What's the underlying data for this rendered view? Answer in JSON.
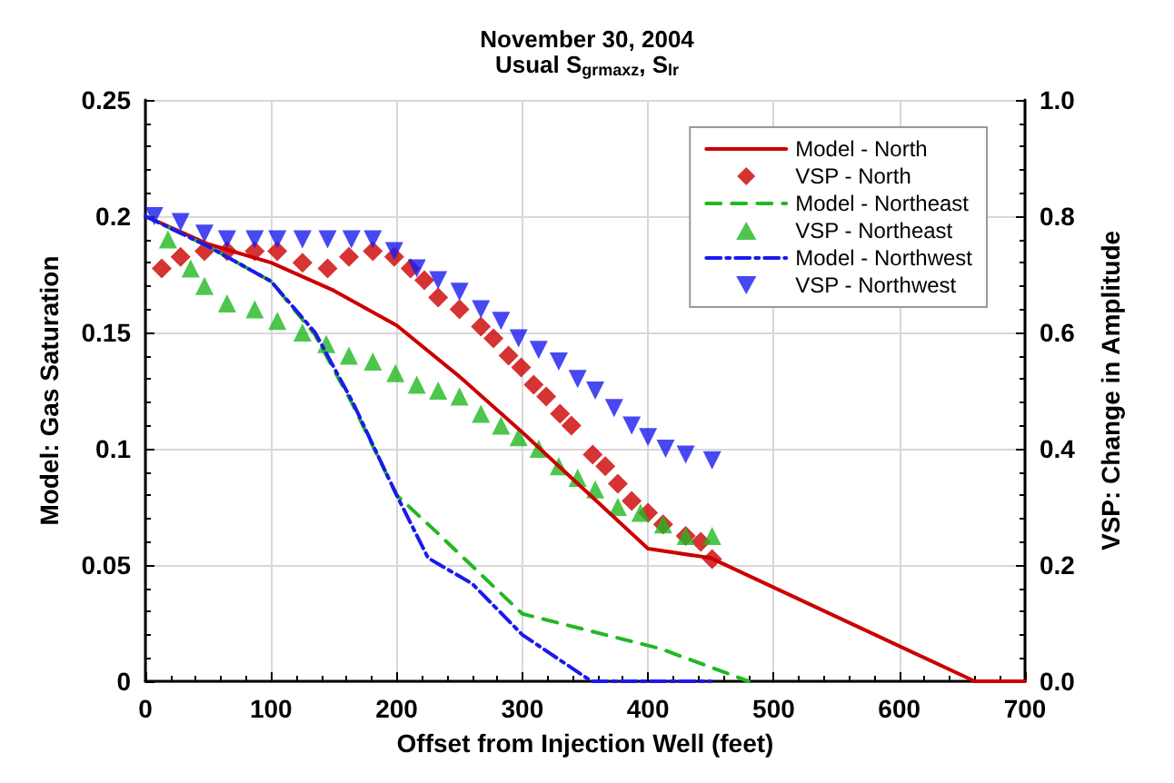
{
  "chart_data": {
    "type": "line",
    "title": "November 30, 2004",
    "subtitle": "Usual S$_{grmaxz}$, S$_{lr}$",
    "xlabel": "Offset from Injection Well (feet)",
    "ylabel": "Model: Gas Saturation",
    "y2label": "VSP: Change in Amplitude",
    "xlim": [
      0,
      700
    ],
    "xticks": [
      0,
      100,
      200,
      300,
      400,
      500,
      600,
      700
    ],
    "ylim": [
      0,
      0.25
    ],
    "yticks": [
      0,
      0.05,
      0.1,
      0.15,
      0.2,
      0.25
    ],
    "y2lim": [
      0,
      1
    ],
    "y2ticks": [
      {
        "value": 0,
        "label": "0.0"
      },
      {
        "value": 0.2,
        "label": "0.2"
      },
      {
        "value": 0.4,
        "label": "0.4"
      },
      {
        "value": 0.6,
        "label": "0.6"
      },
      {
        "value": 0.8,
        "label": "0.8"
      },
      {
        "value": 1,
        "label": "1.0"
      }
    ],
    "grid": true,
    "legend": "top right",
    "series": [
      {
        "name": "Model - North",
        "type": "line",
        "line_style": "solid",
        "marker": "none",
        "color": "#cc0000",
        "x": [
          0,
          50,
          100,
          150,
          200,
          250,
          300,
          350,
          400,
          450,
          660,
          700
        ],
        "values": [
          0.2,
          0.188,
          0.18,
          0.168,
          0.153,
          0.131,
          0.107,
          0.082,
          0.057,
          0.053,
          0,
          0
        ]
      },
      {
        "name": "VSP - North",
        "type": "scatter",
        "marker": "diamond",
        "axis": "y2",
        "color": "#cc0000",
        "x": [
          13,
          28,
          47,
          65,
          87,
          105,
          125,
          145,
          162,
          181,
          198,
          211,
          222,
          233,
          250,
          267,
          277,
          289,
          299,
          309,
          319,
          330,
          339,
          356,
          366,
          376,
          387,
          400,
          412,
          430,
          442,
          451
        ],
        "values": [
          0.71,
          0.73,
          0.74,
          0.74,
          0.74,
          0.74,
          0.72,
          0.71,
          0.73,
          0.74,
          0.73,
          0.71,
          0.69,
          0.66,
          0.64,
          0.61,
          0.59,
          0.56,
          0.54,
          0.51,
          0.49,
          0.46,
          0.44,
          0.39,
          0.37,
          0.34,
          0.31,
          0.29,
          0.27,
          0.25,
          0.24,
          0.21
        ]
      },
      {
        "name": "Model - Northeast",
        "type": "line",
        "line_style": "dashed",
        "marker": "none",
        "color": "#22b822",
        "x": [
          0,
          50,
          100,
          135,
          165,
          200,
          230,
          300,
          410,
          480
        ],
        "values": [
          0.2,
          0.187,
          0.172,
          0.149,
          0.119,
          0.08,
          0.065,
          0.029,
          0.014,
          0
        ]
      },
      {
        "name": "VSP - Northeast",
        "type": "scatter",
        "marker": "triangle",
        "axis": "y2",
        "color": "#22b822",
        "x": [
          18,
          36,
          47,
          65,
          87,
          105,
          125,
          144,
          162,
          181,
          199,
          216,
          233,
          250,
          267,
          283,
          297,
          313,
          329,
          344,
          358,
          376,
          394,
          412,
          430,
          451
        ],
        "values": [
          0.76,
          0.71,
          0.68,
          0.65,
          0.64,
          0.62,
          0.6,
          0.58,
          0.56,
          0.55,
          0.53,
          0.51,
          0.5,
          0.49,
          0.46,
          0.44,
          0.42,
          0.4,
          0.37,
          0.35,
          0.33,
          0.3,
          0.29,
          0.27,
          0.25,
          0.25
        ]
      },
      {
        "name": "Model - Northwest",
        "type": "line",
        "line_style": "dashdot",
        "marker": "none",
        "color": "#1a1aee",
        "x": [
          0,
          50,
          100,
          135,
          165,
          200,
          225,
          260,
          300,
          355,
          450
        ],
        "values": [
          0.2,
          0.187,
          0.172,
          0.15,
          0.12,
          0.08,
          0.053,
          0.042,
          0.02,
          0,
          0
        ]
      },
      {
        "name": "VSP - Northwest",
        "type": "scatter",
        "marker": "triangle-down",
        "axis": "y2",
        "color": "#1a1aee",
        "x": [
          7,
          28,
          47,
          65,
          87,
          105,
          125,
          145,
          164,
          181,
          198,
          216,
          233,
          250,
          267,
          283,
          297,
          313,
          329,
          344,
          358,
          373,
          387,
          400,
          414,
          430,
          451
        ],
        "values": [
          0.8,
          0.79,
          0.77,
          0.76,
          0.76,
          0.76,
          0.76,
          0.76,
          0.76,
          0.76,
          0.74,
          0.71,
          0.69,
          0.67,
          0.64,
          0.62,
          0.59,
          0.57,
          0.55,
          0.52,
          0.5,
          0.47,
          0.44,
          0.42,
          0.4,
          0.39,
          0.38
        ]
      }
    ]
  }
}
